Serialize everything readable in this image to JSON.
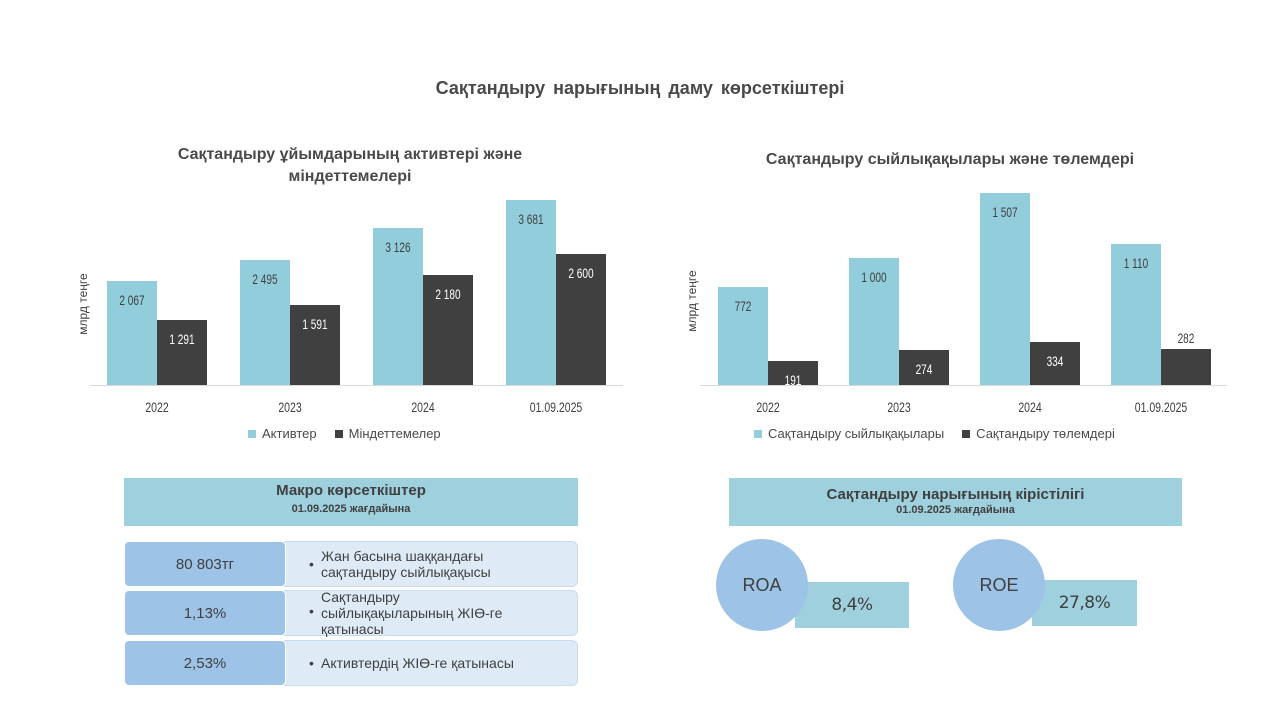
{
  "page": {
    "title": "Сақтандыру  нарығының  даму көрсеткіштері"
  },
  "colors": {
    "light_series": "#92cddc",
    "dark_series": "#404040",
    "table_header": "#9ed0de",
    "value_cell": "#9dc3e6",
    "desc_cell": "#deebf7"
  },
  "chart_data": [
    {
      "type": "bar",
      "title_line1": "Сақтандыру ұйымдарының активтері және",
      "title_line2": "міндеттемелері",
      "ylabel": "млрд теңге",
      "categories": [
        "2022",
        "2023",
        "2024",
        "01.09.2025"
      ],
      "series": [
        {
          "name": "Активтер",
          "values": [
            2067,
            2495,
            3126,
            3681
          ],
          "labels": [
            "2 067",
            "2 495",
            "3 126",
            "3 681"
          ]
        },
        {
          "name": "Міндеттемелер",
          "values": [
            1291,
            1591,
            2180,
            2600
          ],
          "labels": [
            "1 291",
            "1 591",
            "2 180",
            "2 600"
          ]
        }
      ],
      "ylim": [
        0,
        3700
      ],
      "legend": "bottom",
      "grid": false
    },
    {
      "type": "bar",
      "title_line1": "Сақтандыру сыйлықақылары және төлемдері",
      "ylabel": "млрд теңге",
      "categories": [
        "2022",
        "2023",
        "2024",
        "01.09.2025"
      ],
      "series": [
        {
          "name": "Сақтандыру сыйлықақылары",
          "values": [
            772,
            1000,
            1507,
            1110
          ],
          "labels": [
            "772",
            "1 000",
            "1 507",
            "1 110"
          ]
        },
        {
          "name": "Сақтандыру төлемдері",
          "values": [
            191,
            274,
            334,
            282
          ],
          "labels": [
            "191",
            "274",
            "334",
            "282"
          ]
        }
      ],
      "ylim": [
        0,
        1507
      ],
      "legend": "bottom",
      "grid": false
    }
  ],
  "macro": {
    "title": "Макро көрсеткіштер",
    "subtitle": "01.09.2025 жағдайына",
    "bullet": "•",
    "rows": [
      {
        "value": "80 803тг",
        "desc_line1": "Жан басына шаққандағы",
        "desc_line2": "сақтандыру сыйлықақысы"
      },
      {
        "value": "1,13%",
        "desc_line1": "Сақтандыру",
        "desc_line2": "сыйлықақыларының ЖІӨ-ге",
        "desc_line3": "қатынасы"
      },
      {
        "value": "2,53%",
        "desc_line1": "Активтердің ЖІӨ-ге қатынасы"
      }
    ]
  },
  "profitability": {
    "title": "Сақтандыру нарығының кірістілігі",
    "subtitle": "01.09.2025  жағдайына",
    "roa": {
      "label": "ROA",
      "value": "8,4%"
    },
    "roe": {
      "label": "ROE",
      "value": "27,8%"
    }
  }
}
